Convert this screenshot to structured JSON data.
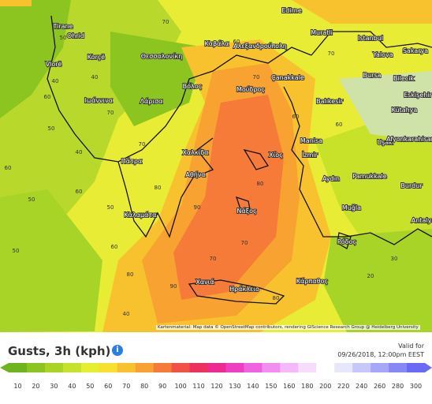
{
  "map": {
    "cities": [
      "Tirane",
      "Ohrid",
      "Korçë",
      "Vlorë",
      "Θεσσαλονίκη",
      "Καβάλα",
      "Αλεξανδρούπολη",
      "Edirne",
      "Muratli",
      "Istanbul",
      "Yalova",
      "Sakarya",
      "Bursa",
      "Bilecik",
      "Eskişehir",
      "Kütahya",
      "Balıkesir",
      "Çanakkale",
      "Μούδρος",
      "Ιωάννινα",
      "Λάρισα",
      "Βόλος",
      "Χαλκίδα",
      "Πάτρα",
      "Αθήνα",
      "Καλαμάτα",
      "Νάξος",
      "Χίος",
      "İzmir",
      "Manisa",
      "Uşak",
      "Afyonkarahisar",
      "Aydın",
      "Pamukkale",
      "Burdur",
      "Muğla",
      "Ρόδος",
      "Antalya",
      "Κάρπαθος",
      "Χανιά",
      "Ηράκλειο"
    ],
    "contour_labels": [
      60,
      70,
      40,
      50,
      60,
      70,
      40,
      50,
      60,
      40,
      50,
      70,
      80,
      90,
      70,
      80,
      60,
      70,
      80,
      90,
      60,
      70,
      50,
      40,
      60,
      30,
      20,
      70,
      80,
      60,
      50
    ],
    "attribution": "Kartenmaterial: Map data © OpenStreetMap contributors, rendering GIScience Research Group @ Heidelberg University"
  },
  "legend": {
    "title": "Gusts, 3h (kph)",
    "info_icon": "i",
    "valid_label": "Valid for",
    "valid_time": "09/26/2018, 12:00pm EEST",
    "steps": [
      {
        "value": 10,
        "color": "#6db41f"
      },
      {
        "value": 20,
        "color": "#8cc51f"
      },
      {
        "value": 30,
        "color": "#a9d424"
      },
      {
        "value": 40,
        "color": "#c6e22a"
      },
      {
        "value": 50,
        "color": "#e3ef2f"
      },
      {
        "value": 60,
        "color": "#f7e12e"
      },
      {
        "value": 70,
        "color": "#f8c22f"
      },
      {
        "value": 80,
        "color": "#f8a232"
      },
      {
        "value": 90,
        "color": "#f67a38"
      },
      {
        "value": 100,
        "color": "#f25245"
      },
      {
        "value": 110,
        "color": "#ef2f5e"
      },
      {
        "value": 120,
        "color": "#ee2a92"
      },
      {
        "value": 130,
        "color": "#ef3fc0"
      },
      {
        "value": 140,
        "color": "#f162df"
      },
      {
        "value": 150,
        "color": "#f28ef0"
      },
      {
        "value": 160,
        "color": "#f3b9f8"
      },
      {
        "value": 180,
        "color": "#f8dcfc"
      },
      {
        "value": 200,
        "color": "#ffffff"
      },
      {
        "value": 220,
        "color": "#e6e6fc"
      },
      {
        "value": 240,
        "color": "#c7c7fb"
      },
      {
        "value": 260,
        "color": "#a7a7fa"
      },
      {
        "value": 280,
        "color": "#8787f8"
      },
      {
        "value": 300,
        "color": "#6a6af6"
      }
    ]
  }
}
